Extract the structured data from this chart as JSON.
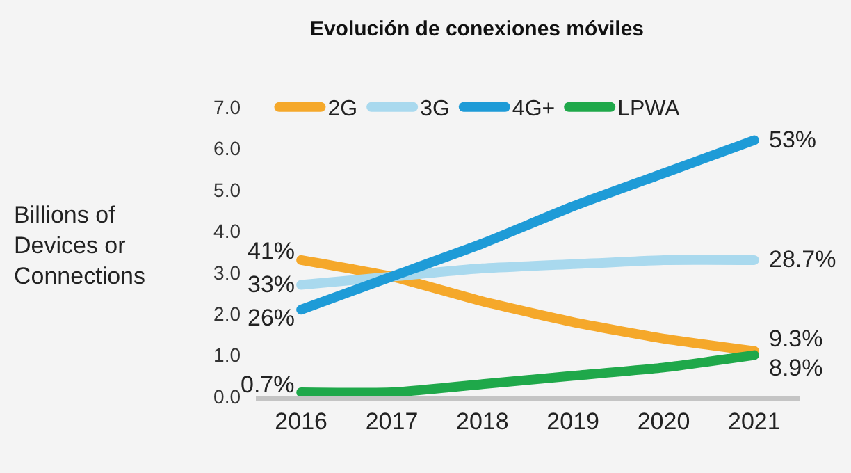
{
  "chart_data": {
    "type": "line",
    "title": "Evolución de conexiones móviles",
    "ylabel": "Billions of Devices or Connections",
    "categories": [
      "2016",
      "2017",
      "2018",
      "2019",
      "2020",
      "2021"
    ],
    "series": [
      {
        "name": "2G",
        "color": "#f5a82a",
        "values": [
          3.3,
          2.9,
          2.3,
          1.8,
          1.4,
          1.1
        ]
      },
      {
        "name": "3G",
        "color": "#a9d9ee",
        "values": [
          2.7,
          2.9,
          3.1,
          3.2,
          3.3,
          3.3
        ]
      },
      {
        "name": "4G+",
        "color": "#1e9bd7",
        "values": [
          2.1,
          2.9,
          3.7,
          4.6,
          5.4,
          6.2
        ]
      },
      {
        "name": "LPWA",
        "color": "#1fa84a",
        "values": [
          0.1,
          0.1,
          0.3,
          0.5,
          0.7,
          1.0
        ]
      }
    ],
    "annotations": [
      {
        "text": "41%",
        "x": "2016",
        "y": 3.3
      },
      {
        "text": "33%",
        "x": "2016",
        "y": 2.7
      },
      {
        "text": "26%",
        "x": "2016",
        "y": 2.1
      },
      {
        "text": "0.7%",
        "x": "2016",
        "y": 0.1
      },
      {
        "text": "53%",
        "x": "2021",
        "y": 6.2
      },
      {
        "text": "28.7%",
        "x": "2021",
        "y": 3.3
      },
      {
        "text": "9.3%",
        "x": "2021",
        "y": 1.1
      },
      {
        "text": "8.9%",
        "x": "2021",
        "y": 1.0
      }
    ],
    "ylim": [
      0,
      7
    ],
    "yticks": [
      {
        "value": 0,
        "label": "0.0"
      },
      {
        "value": 1,
        "label": "1.0"
      },
      {
        "value": 2,
        "label": "2.0"
      },
      {
        "value": 3,
        "label": "3.0"
      },
      {
        "value": 4,
        "label": "4.0"
      },
      {
        "value": 5,
        "label": "5.0"
      },
      {
        "value": 6,
        "label": "6.0"
      },
      {
        "value": 7,
        "label": "7.0"
      }
    ],
    "legend": "top left",
    "line_style": "solid",
    "marker": "none"
  }
}
